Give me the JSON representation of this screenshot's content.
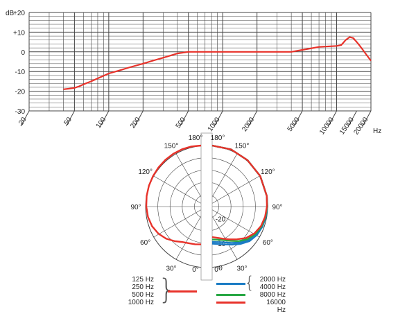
{
  "chart_data": [
    {
      "type": "line",
      "title": "",
      "xlabel": "Hz",
      "ylabel": "dB",
      "x_scale": "log",
      "xlim": [
        20,
        20000
      ],
      "ylim": [
        -30,
        20
      ],
      "x_tick_labels": [
        "20",
        "50",
        "100",
        "200",
        "500",
        "1000",
        "2000",
        "5000",
        "10000",
        "15000",
        "20000"
      ],
      "x_tick_values": [
        20,
        50,
        100,
        200,
        500,
        1000,
        2000,
        5000,
        10000,
        15000,
        20000
      ],
      "y_tick_labels": [
        "+20",
        "+10",
        "0",
        "-10",
        "-20",
        "-30"
      ],
      "y_tick_values": [
        20,
        10,
        0,
        -10,
        -20,
        -30
      ],
      "grid": true,
      "series": [
        {
          "color": "#e8322a",
          "x": [
            40,
            45,
            50,
            55,
            60,
            70,
            80,
            100,
            120,
            150,
            200,
            250,
            300,
            400,
            500,
            600,
            800,
            1000,
            1500,
            2000,
            3000,
            4000,
            5000,
            7000,
            10000,
            11000,
            12000,
            13000,
            14000,
            15000,
            16000,
            17000,
            18000,
            20000
          ],
          "y": [
            -19,
            -18.7,
            -18.3,
            -17.5,
            -16.5,
            -15,
            -13.5,
            -11,
            -9.7,
            -8,
            -6,
            -4.3,
            -3,
            -0.8,
            0,
            0,
            0,
            0,
            0,
            0,
            0,
            0,
            1,
            2.5,
            3,
            3.5,
            6,
            7.5,
            7,
            5,
            3,
            1,
            -1,
            -4.5
          ]
        }
      ]
    },
    {
      "type": "polar",
      "title": "",
      "angle_labels_left": [
        "180°",
        "150°",
        "120°",
        "90°",
        "60°",
        "30°",
        "0°"
      ],
      "angle_labels_right": [
        "180°",
        "150°",
        "120°",
        "90°",
        "60°",
        "30°",
        "0°"
      ],
      "radial_labels": [
        "-20",
        "-10",
        "0"
      ],
      "radial_range_db": [
        -25,
        0
      ],
      "series": [
        {
          "name_group": "left",
          "color": "#e8322a",
          "angles_deg": [
            0,
            10,
            20,
            30,
            40,
            50,
            60,
            70,
            80,
            90,
            100,
            110,
            120,
            130,
            140,
            150,
            160,
            170,
            180
          ],
          "values_db": [
            -9.5,
            -9.3,
            -9,
            -8.2,
            -6.5,
            -4.5,
            -2.8,
            -1.5,
            -0.7,
            -0.3,
            -0.1,
            0,
            0,
            0,
            0,
            0,
            0,
            0,
            0
          ]
        },
        {
          "name": "2000 Hz",
          "color": "#1a7bc4",
          "angles_deg": [
            0,
            10,
            20,
            30,
            40,
            50,
            60,
            70,
            80,
            90,
            100,
            120,
            140,
            160,
            180
          ],
          "values_db": [
            -9.8,
            -9.4,
            -8.5,
            -7,
            -5,
            -3,
            -1.7,
            -0.9,
            -0.4,
            -0.1,
            0,
            0,
            -0.2,
            -0.1,
            0
          ]
        },
        {
          "name": "4000 Hz",
          "color": "#1a7bc4",
          "angles_deg": [
            0,
            10,
            20,
            30,
            40,
            50,
            60,
            70,
            80,
            90,
            100,
            120,
            140,
            160,
            180
          ],
          "values_db": [
            -10.5,
            -10.2,
            -9.4,
            -7.8,
            -5.7,
            -3.5,
            -2,
            -1,
            -0.5,
            -0.2,
            0,
            0,
            -0.2,
            -0.1,
            0
          ]
        },
        {
          "name": "8000 Hz",
          "color": "#28a745",
          "angles_deg": [
            0,
            10,
            20,
            30,
            40,
            50,
            60,
            70,
            80,
            90,
            100,
            120,
            140,
            160,
            180
          ],
          "values_db": [
            -11.5,
            -11.2,
            -10.4,
            -8.8,
            -6.5,
            -4.2,
            -2.5,
            -1.3,
            -0.6,
            -0.2,
            0,
            0,
            -0.2,
            -0.1,
            0
          ]
        },
        {
          "name": "16000 Hz",
          "color": "#e8322a",
          "angles_deg": [
            0,
            10,
            20,
            30,
            40,
            50,
            60,
            70,
            80,
            90,
            100,
            120,
            140,
            160,
            180
          ],
          "values_db": [
            -12.5,
            -12,
            -11,
            -9.5,
            -7.5,
            -5,
            -3,
            -1.6,
            -0.8,
            -0.3,
            0,
            0,
            -0.2,
            -0.1,
            0
          ]
        }
      ]
    }
  ],
  "legend": {
    "left_entries": [
      "125 Hz",
      "250 Hz",
      "500 Hz",
      "1000 Hz"
    ],
    "left_color": "#e8322a",
    "right_entries": [
      {
        "label": "2000 Hz",
        "color": "#1a7bc4"
      },
      {
        "label": "4000 Hz",
        "color": "#1a7bc4"
      },
      {
        "label": "8000 Hz",
        "color": "#28a745"
      },
      {
        "label": "16000 Hz",
        "color": "#e8322a"
      }
    ]
  },
  "colors": {
    "grid": "#444444",
    "red": "#e8322a",
    "blue": "#1a7bc4",
    "green": "#28a745"
  }
}
